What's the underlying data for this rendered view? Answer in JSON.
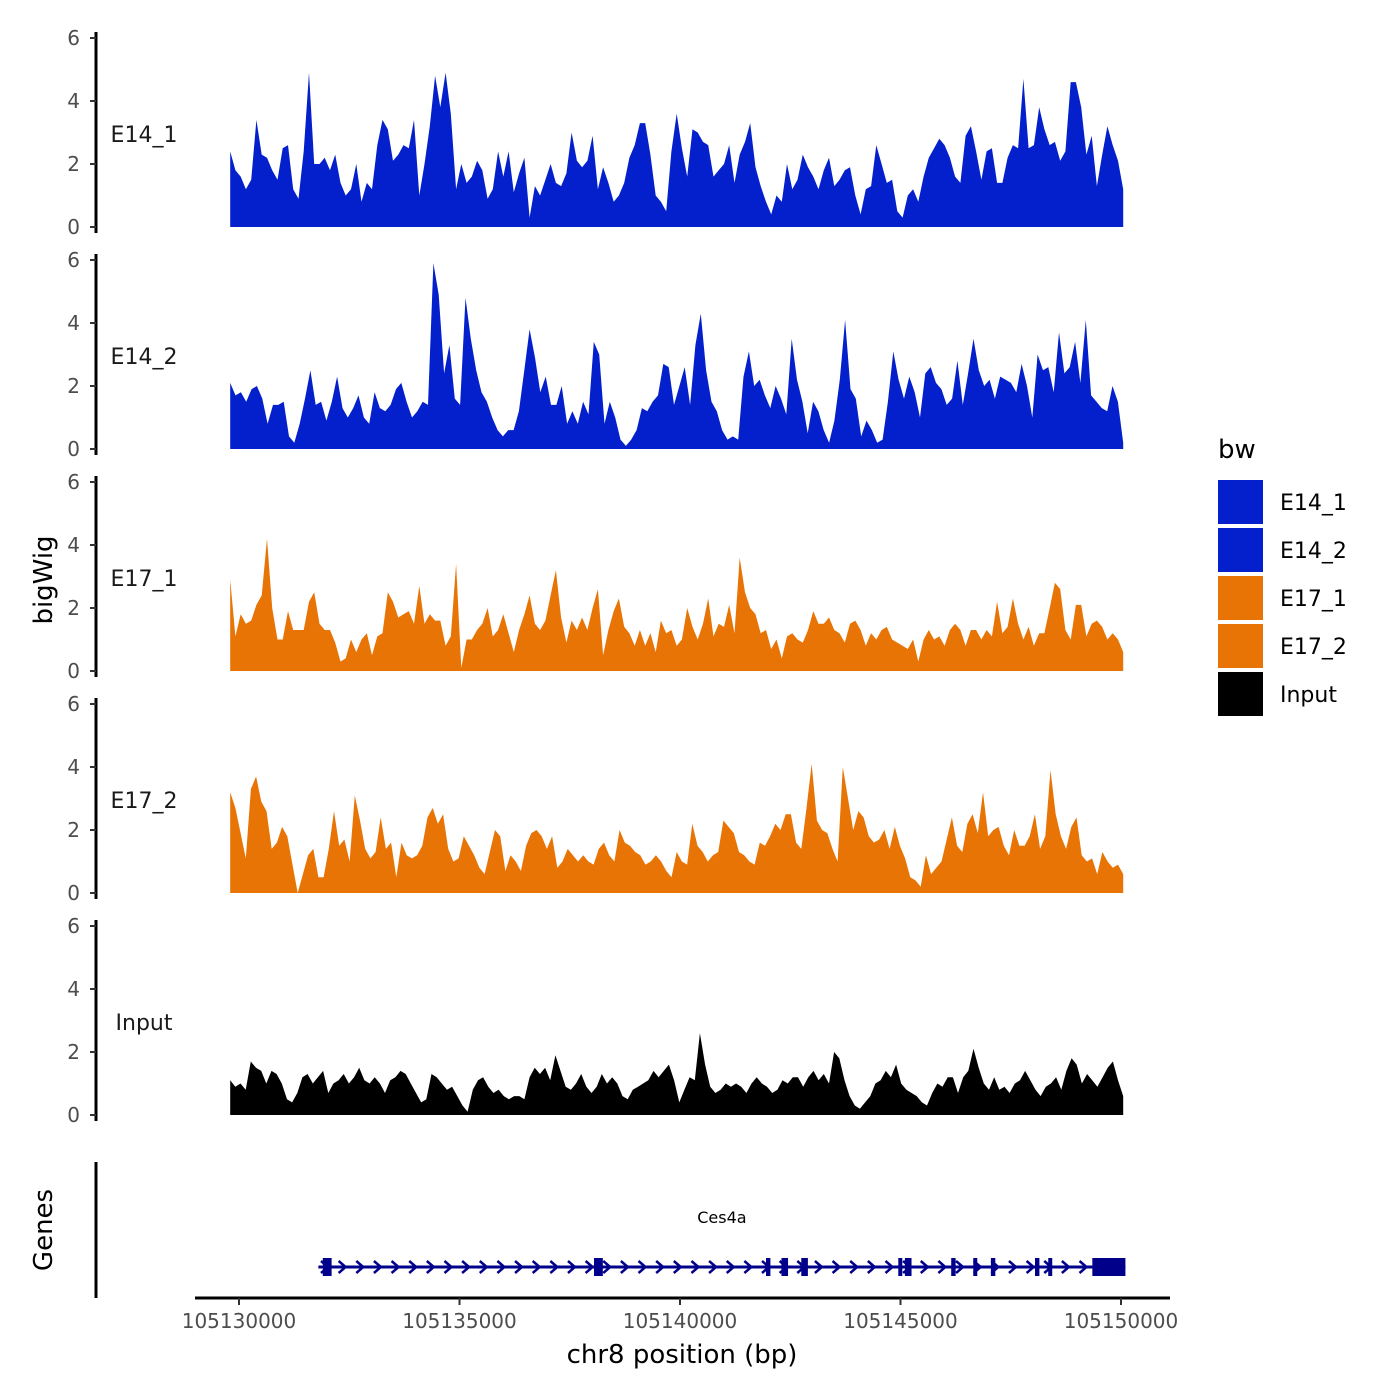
{
  "chart_data": {
    "type": "area",
    "region": {
      "chrom": "chr8",
      "start": 105129800,
      "end": 105150050
    },
    "ylabel": "bigWig",
    "xlabel": "chr8 position (bp)",
    "gene_panel_label": "Genes",
    "ylim": [
      0,
      6
    ],
    "y_ticks": [
      "0",
      "2",
      "4",
      "6"
    ],
    "x_ticks": [
      {
        "value": 105130000,
        "label": "105130000"
      },
      {
        "value": 105135000,
        "label": "105135000"
      },
      {
        "value": 105140000,
        "label": "105140000"
      },
      {
        "value": 105145000,
        "label": "105145000"
      },
      {
        "value": 105150000,
        "label": "105150000"
      }
    ],
    "legend": {
      "title": "bw",
      "entries": [
        {
          "name": "E14_1",
          "color": "#0320CC"
        },
        {
          "name": "E14_2",
          "color": "#0320CC"
        },
        {
          "name": "E17_1",
          "color": "#E87405"
        },
        {
          "name": "E17_2",
          "color": "#E87405"
        },
        {
          "name": "Input",
          "color": "#000000"
        }
      ]
    },
    "series": [
      {
        "name": "E14_1",
        "color": "#0320CC",
        "x_start": 105129800,
        "x_end": 105150050,
        "values": [
          2.4,
          1.8,
          1.6,
          1.2,
          1.5,
          3.4,
          2.3,
          2.2,
          1.8,
          1.5,
          2.5,
          2.6,
          1.2,
          0.9,
          2.4,
          4.9,
          2.0,
          2.0,
          2.2,
          1.8,
          2.3,
          1.4,
          1.0,
          1.2,
          2.0,
          0.8,
          1.4,
          1.2,
          2.6,
          3.4,
          3.1,
          2.1,
          2.3,
          2.6,
          2.5,
          3.4,
          1.0,
          2.0,
          3.2,
          4.8,
          3.8,
          4.9,
          3.6,
          1.2,
          2.0,
          1.4,
          1.6,
          2.1,
          1.8,
          0.9,
          1.2,
          2.4,
          1.6,
          2.4,
          1.1,
          1.7,
          2.2,
          0.3,
          1.3,
          1.0,
          1.5,
          2.0,
          1.4,
          1.3,
          1.7,
          3.0,
          2.1,
          1.9,
          2.1,
          2.9,
          1.2,
          1.9,
          1.4,
          0.8,
          1.0,
          1.4,
          2.2,
          2.6,
          3.3,
          3.3,
          2.3,
          1.0,
          0.8,
          0.5,
          2.4,
          3.6,
          2.5,
          1.6,
          3.1,
          3.0,
          2.7,
          2.6,
          1.6,
          1.8,
          2.0,
          2.6,
          1.4,
          2.3,
          2.7,
          3.3,
          1.9,
          1.3,
          0.8,
          0.4,
          1.0,
          0.8,
          2.0,
          1.2,
          1.5,
          2.3,
          1.9,
          1.6,
          1.2,
          1.8,
          2.2,
          1.3,
          1.5,
          1.8,
          1.9,
          1.0,
          0.4,
          1.2,
          1.3,
          2.6,
          2.0,
          1.4,
          1.5,
          0.5,
          0.3,
          1.0,
          1.2,
          0.8,
          1.6,
          2.2,
          2.5,
          2.8,
          2.6,
          2.2,
          1.6,
          1.4,
          2.9,
          3.2,
          2.4,
          1.5,
          2.4,
          2.5,
          1.4,
          1.4,
          2.2,
          2.6,
          2.5,
          4.7,
          2.5,
          2.6,
          3.8,
          3.1,
          2.6,
          2.7,
          2.1,
          2.4,
          4.6,
          4.6,
          3.8,
          2.3,
          2.9,
          1.3,
          2.3,
          3.2,
          2.6,
          2.1,
          1.2
        ]
      },
      {
        "name": "E14_2",
        "color": "#0320CC",
        "x_start": 105129800,
        "x_end": 105150050,
        "values": [
          2.1,
          1.7,
          1.8,
          1.5,
          1.9,
          2.0,
          1.6,
          0.8,
          1.4,
          1.4,
          1.5,
          0.4,
          0.2,
          0.8,
          1.6,
          2.5,
          1.4,
          1.5,
          0.9,
          1.5,
          2.3,
          1.3,
          1.0,
          1.3,
          1.7,
          1.0,
          0.8,
          1.8,
          1.3,
          1.2,
          1.4,
          1.9,
          2.1,
          1.5,
          1.0,
          1.2,
          1.5,
          1.4,
          5.9,
          4.9,
          2.4,
          3.3,
          1.6,
          1.4,
          4.8,
          3.5,
          2.5,
          1.8,
          1.5,
          1.0,
          0.6,
          0.4,
          0.6,
          0.6,
          1.2,
          2.5,
          3.8,
          2.9,
          1.8,
          2.3,
          1.4,
          1.4,
          2.0,
          0.8,
          1.2,
          0.8,
          1.5,
          1.1,
          3.4,
          3.0,
          0.8,
          1.5,
          1.0,
          0.3,
          0.1,
          0.3,
          0.6,
          1.3,
          1.2,
          1.5,
          1.7,
          2.7,
          2.6,
          1.4,
          2.0,
          2.6,
          1.4,
          3.3,
          4.3,
          2.5,
          1.5,
          1.2,
          0.6,
          0.3,
          0.4,
          0.3,
          2.3,
          3.1,
          2.0,
          2.2,
          1.7,
          1.3,
          2.0,
          1.6,
          1.1,
          3.5,
          2.2,
          1.5,
          0.5,
          1.5,
          1.2,
          0.6,
          0.2,
          0.9,
          2.2,
          4.1,
          1.9,
          1.6,
          0.4,
          0.9,
          0.6,
          0.2,
          0.3,
          1.5,
          3.1,
          2.2,
          1.6,
          2.3,
          1.8,
          1.0,
          2.4,
          2.6,
          2.1,
          1.9,
          1.4,
          1.6,
          2.8,
          1.4,
          2.4,
          3.5,
          2.5,
          2.0,
          2.2,
          1.6,
          2.3,
          2.2,
          2.1,
          1.8,
          2.7,
          2.0,
          1.0,
          3.0,
          2.5,
          2.6,
          1.8,
          3.7,
          2.4,
          2.6,
          3.4,
          2.1,
          4.1,
          1.7,
          1.5,
          1.3,
          1.2,
          2.0,
          1.5,
          0.2
        ]
      },
      {
        "name": "E17_1",
        "color": "#E87405",
        "x_start": 105129800,
        "x_end": 105150050,
        "values": [
          2.9,
          1.1,
          1.8,
          1.5,
          1.6,
          2.1,
          2.4,
          4.2,
          2.0,
          1.0,
          1.0,
          1.9,
          1.3,
          1.3,
          1.3,
          2.2,
          2.5,
          1.5,
          1.3,
          1.3,
          0.9,
          0.3,
          0.4,
          1.0,
          0.6,
          1.0,
          1.2,
          0.5,
          1.1,
          1.2,
          2.5,
          2.2,
          1.7,
          1.8,
          1.9,
          1.5,
          2.7,
          1.5,
          1.8,
          1.6,
          1.6,
          0.8,
          1.1,
          3.4,
          0.1,
          1.0,
          1.0,
          1.3,
          1.5,
          2.0,
          1.1,
          1.3,
          1.8,
          1.2,
          0.6,
          1.3,
          1.8,
          2.4,
          1.5,
          1.3,
          1.6,
          2.4,
          3.2,
          1.7,
          0.9,
          1.6,
          1.3,
          1.7,
          1.3,
          2.0,
          2.6,
          0.5,
          1.3,
          1.9,
          2.3,
          1.4,
          1.2,
          0.8,
          1.3,
          0.8,
          1.2,
          0.6,
          1.6,
          1.2,
          1.3,
          0.8,
          1.0,
          2.0,
          1.4,
          1.0,
          1.5,
          2.3,
          1.1,
          1.5,
          1.4,
          2.1,
          1.2,
          3.6,
          2.5,
          2.0,
          1.8,
          1.2,
          1.3,
          0.7,
          1.0,
          0.4,
          1.1,
          1.2,
          1.0,
          0.9,
          1.3,
          1.9,
          1.5,
          1.5,
          1.7,
          1.3,
          1.2,
          0.9,
          1.5,
          1.6,
          1.3,
          0.8,
          1.2,
          1.0,
          1.3,
          1.4,
          1.0,
          0.9,
          0.8,
          0.7,
          1.0,
          0.3,
          1.0,
          1.3,
          1.0,
          1.1,
          0.8,
          1.3,
          1.5,
          1.3,
          0.8,
          1.3,
          1.3,
          1.0,
          1.3,
          1.1,
          2.2,
          1.2,
          1.4,
          2.3,
          1.5,
          1.0,
          1.4,
          0.8,
          1.2,
          1.2,
          2.0,
          2.8,
          2.6,
          1.3,
          1.0,
          2.1,
          2.1,
          1.1,
          1.5,
          1.6,
          1.4,
          1.0,
          1.2,
          1.0,
          0.6
        ]
      },
      {
        "name": "E17_2",
        "color": "#E87405",
        "x_start": 105129800,
        "x_end": 105150050,
        "values": [
          3.2,
          2.7,
          1.9,
          1.1,
          3.3,
          3.7,
          2.9,
          2.6,
          1.4,
          1.6,
          2.1,
          1.8,
          0.9,
          0.0,
          0.6,
          1.2,
          1.4,
          0.5,
          0.5,
          1.4,
          2.6,
          1.5,
          1.7,
          1.0,
          3.1,
          2.3,
          1.4,
          1.1,
          1.3,
          2.4,
          1.4,
          1.6,
          0.5,
          1.6,
          1.2,
          1.1,
          1.2,
          1.5,
          2.4,
          2.7,
          2.2,
          2.5,
          1.4,
          1.0,
          1.1,
          1.8,
          1.5,
          1.2,
          0.8,
          0.6,
          1.3,
          2.0,
          1.8,
          0.7,
          1.2,
          1.0,
          0.7,
          1.5,
          1.9,
          2.0,
          1.8,
          1.4,
          1.8,
          0.8,
          1.0,
          1.4,
          1.2,
          1.0,
          1.2,
          1.0,
          0.9,
          1.4,
          1.6,
          1.2,
          1.0,
          2.0,
          1.6,
          1.5,
          1.3,
          1.2,
          0.9,
          1.0,
          1.2,
          1.0,
          0.7,
          0.5,
          1.3,
          1.0,
          0.9,
          2.2,
          1.5,
          1.3,
          1.0,
          1.2,
          1.3,
          2.3,
          2.1,
          1.9,
          1.3,
          1.2,
          1.0,
          0.9,
          1.6,
          1.5,
          1.8,
          2.2,
          2.0,
          2.5,
          2.5,
          1.6,
          1.4,
          2.7,
          4.1,
          2.3,
          2.0,
          1.9,
          1.4,
          1.0,
          4.0,
          3.0,
          2.0,
          2.6,
          2.4,
          1.8,
          1.6,
          1.7,
          2.0,
          1.4,
          2.1,
          1.5,
          1.1,
          0.5,
          0.4,
          0.2,
          1.2,
          0.6,
          0.8,
          1.0,
          1.7,
          2.4,
          1.5,
          1.3,
          2.2,
          2.5,
          1.9,
          3.2,
          1.8,
          2.0,
          2.1,
          1.5,
          1.2,
          2.0,
          1.5,
          1.5,
          1.8,
          2.5,
          1.4,
          1.8,
          3.9,
          2.5,
          1.8,
          1.4,
          2.1,
          2.4,
          1.2,
          1.0,
          1.1,
          0.6,
          1.3,
          1.0,
          0.8,
          0.9,
          0.6
        ]
      },
      {
        "name": "Input",
        "color": "#000000",
        "x_start": 105129800,
        "x_end": 105150050,
        "values": [
          1.1,
          0.9,
          1.0,
          0.8,
          1.7,
          1.5,
          1.4,
          1.0,
          1.4,
          1.3,
          1.0,
          0.5,
          0.4,
          0.7,
          1.2,
          1.3,
          1.0,
          1.2,
          1.4,
          0.7,
          1.0,
          1.1,
          1.3,
          1.0,
          1.2,
          1.5,
          1.1,
          1.0,
          1.2,
          1.0,
          0.7,
          1.1,
          1.2,
          1.4,
          1.3,
          1.0,
          0.7,
          0.4,
          0.5,
          1.3,
          1.2,
          1.0,
          0.8,
          0.9,
          0.6,
          0.3,
          0.1,
          0.8,
          1.1,
          1.2,
          0.9,
          0.7,
          0.8,
          0.6,
          0.5,
          0.6,
          0.6,
          0.5,
          1.2,
          1.5,
          1.3,
          1.5,
          1.1,
          1.9,
          1.4,
          0.9,
          0.8,
          1.0,
          1.3,
          0.9,
          0.7,
          0.9,
          1.3,
          1.0,
          1.2,
          1.0,
          0.6,
          0.5,
          0.8,
          0.9,
          1.0,
          1.1,
          1.4,
          1.2,
          1.4,
          1.6,
          1.1,
          0.4,
          0.8,
          1.2,
          1.1,
          2.6,
          1.6,
          0.9,
          0.7,
          0.8,
          1.0,
          0.9,
          1.0,
          0.9,
          0.7,
          1.0,
          1.2,
          1.0,
          0.9,
          0.7,
          0.8,
          1.1,
          1.0,
          1.2,
          1.2,
          0.9,
          1.2,
          1.4,
          1.1,
          1.3,
          1.0,
          2.0,
          1.8,
          1.1,
          0.6,
          0.3,
          0.2,
          0.4,
          0.6,
          1.0,
          1.1,
          1.4,
          1.2,
          1.6,
          1.0,
          0.8,
          0.7,
          0.6,
          0.4,
          0.3,
          0.7,
          1.0,
          0.9,
          1.2,
          1.2,
          0.7,
          1.2,
          1.4,
          2.1,
          1.5,
          1.0,
          0.8,
          1.2,
          0.8,
          0.9,
          0.7,
          1.0,
          1.1,
          1.4,
          1.1,
          0.8,
          0.6,
          0.9,
          1.0,
          1.2,
          0.8,
          1.4,
          1.8,
          1.6,
          1.0,
          1.3,
          1.1,
          0.9,
          1.2,
          1.5,
          1.7,
          1.1,
          0.6
        ]
      }
    ],
    "gene": {
      "name": "Ces4a",
      "color": "#00008B",
      "strand": "+",
      "start": 105131800,
      "end": 105150100,
      "exons": [
        {
          "start": 105131900,
          "end": 105132100
        },
        {
          "start": 105138050,
          "end": 105138250
        },
        {
          "start": 105141950,
          "end": 105142050
        },
        {
          "start": 105142300,
          "end": 105142450
        },
        {
          "start": 105142750,
          "end": 105142900
        },
        {
          "start": 105144950,
          "end": 105145000
        },
        {
          "start": 105145100,
          "end": 105145250
        },
        {
          "start": 105146150,
          "end": 105146250
        },
        {
          "start": 105146650,
          "end": 105146700
        },
        {
          "start": 105147050,
          "end": 105147150
        },
        {
          "start": 105148050,
          "end": 105148150
        },
        {
          "start": 105148350,
          "end": 105148400
        },
        {
          "start": 105149350,
          "end": 105150100
        }
      ]
    }
  }
}
